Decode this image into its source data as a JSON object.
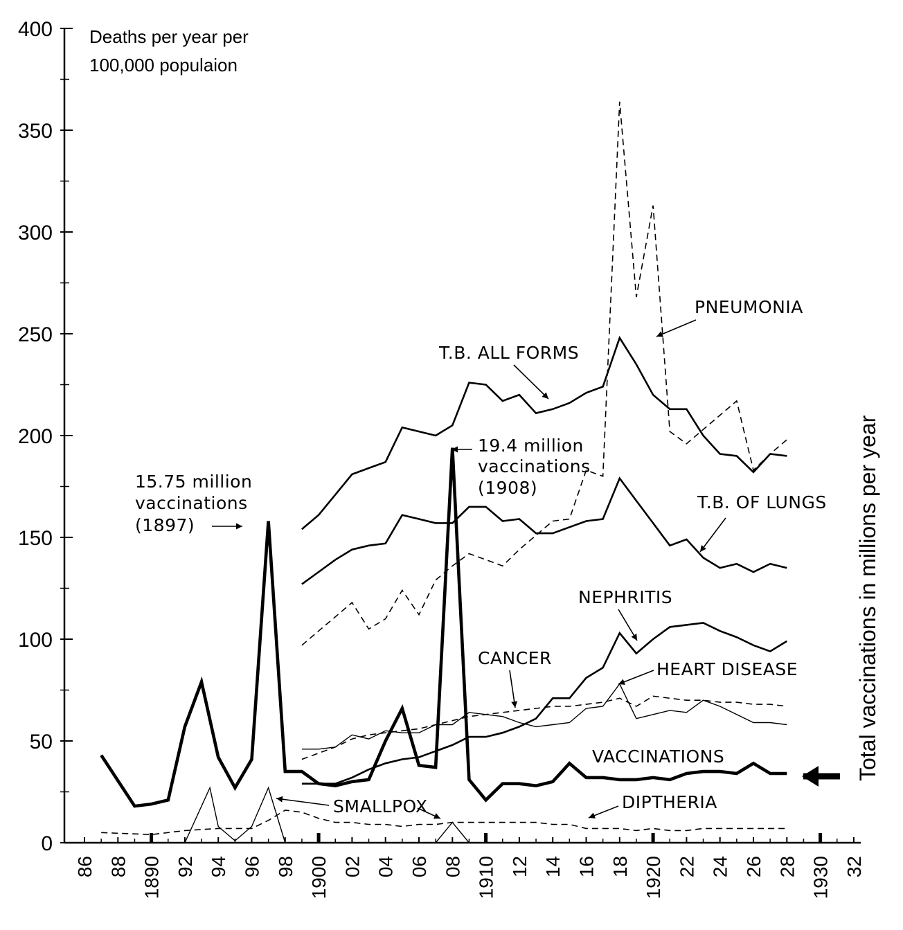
{
  "chart_data": {
    "type": "line",
    "ylabel_lines": [
      "Deaths per year per",
      "100,000 populaion"
    ],
    "right_label": "Total vaccinations in millions per year",
    "ylim": [
      0,
      400
    ],
    "xlim": [
      1885.5,
      1932.5
    ],
    "y_ticks": [
      0,
      50,
      100,
      150,
      200,
      250,
      300,
      350,
      400
    ],
    "x_ticks": [
      {
        "x": 1886,
        "label": "86"
      },
      {
        "x": 1888,
        "label": "88"
      },
      {
        "x": 1890,
        "label": "1890"
      },
      {
        "x": 1892,
        "label": "92"
      },
      {
        "x": 1894,
        "label": "94"
      },
      {
        "x": 1896,
        "label": "96"
      },
      {
        "x": 1898,
        "label": "98"
      },
      {
        "x": 1900,
        "label": "1900"
      },
      {
        "x": 1902,
        "label": "02"
      },
      {
        "x": 1904,
        "label": "04"
      },
      {
        "x": 1906,
        "label": "06"
      },
      {
        "x": 1908,
        "label": "08"
      },
      {
        "x": 1910,
        "label": "1910"
      },
      {
        "x": 1912,
        "label": "12"
      },
      {
        "x": 1914,
        "label": "14"
      },
      {
        "x": 1916,
        "label": "16"
      },
      {
        "x": 1918,
        "label": "18"
      },
      {
        "x": 1920,
        "label": "1920"
      },
      {
        "x": 1922,
        "label": "22"
      },
      {
        "x": 1924,
        "label": "24"
      },
      {
        "x": 1926,
        "label": "26"
      },
      {
        "x": 1928,
        "label": "28"
      },
      {
        "x": 1930,
        "label": "1930"
      },
      {
        "x": 1932,
        "label": "32"
      }
    ],
    "series": [
      {
        "name": "VACCINATIONS",
        "style": "bold",
        "points": [
          [
            1887,
            43
          ],
          [
            1889,
            18
          ],
          [
            1890,
            19
          ],
          [
            1891,
            21
          ],
          [
            1892,
            57
          ],
          [
            1893,
            79
          ],
          [
            1894,
            42
          ],
          [
            1895,
            27
          ],
          [
            1896,
            41
          ],
          [
            1897,
            158
          ],
          [
            1898,
            35
          ],
          [
            1899,
            35
          ],
          [
            1900,
            29
          ],
          [
            1901,
            28
          ],
          [
            1902,
            30
          ],
          [
            1903,
            31
          ],
          [
            1904,
            50
          ],
          [
            1905,
            66
          ],
          [
            1906,
            38
          ],
          [
            1907,
            37
          ],
          [
            1908,
            194
          ],
          [
            1909,
            31
          ],
          [
            1910,
            21
          ],
          [
            1911,
            29
          ],
          [
            1912,
            29
          ],
          [
            1913,
            28
          ],
          [
            1914,
            30
          ],
          [
            1915,
            39
          ],
          [
            1916,
            32
          ],
          [
            1917,
            32
          ],
          [
            1918,
            31
          ],
          [
            1919,
            31
          ],
          [
            1920,
            32
          ],
          [
            1921,
            31
          ],
          [
            1922,
            34
          ],
          [
            1923,
            35
          ],
          [
            1924,
            35
          ],
          [
            1925,
            34
          ],
          [
            1926,
            39
          ],
          [
            1927,
            34
          ],
          [
            1928,
            34
          ]
        ]
      },
      {
        "name": "T.B. ALL FORMS",
        "style": "solid",
        "points": [
          [
            1899,
            154
          ],
          [
            1900,
            161
          ],
          [
            1901,
            171
          ],
          [
            1902,
            181
          ],
          [
            1903,
            184
          ],
          [
            1904,
            187
          ],
          [
            1905,
            204
          ],
          [
            1906,
            202
          ],
          [
            1907,
            200
          ],
          [
            1908,
            205
          ],
          [
            1909,
            226
          ],
          [
            1910,
            225
          ],
          [
            1911,
            217
          ],
          [
            1912,
            220
          ],
          [
            1913,
            211
          ],
          [
            1914,
            213
          ],
          [
            1915,
            216
          ],
          [
            1916,
            221
          ],
          [
            1917,
            224
          ],
          [
            1918,
            248
          ],
          [
            1919,
            235
          ],
          [
            1920,
            220
          ],
          [
            1921,
            213
          ],
          [
            1922,
            213
          ],
          [
            1923,
            200
          ],
          [
            1924,
            191
          ],
          [
            1925,
            190
          ],
          [
            1926,
            182
          ],
          [
            1927,
            191
          ],
          [
            1928,
            190
          ]
        ]
      },
      {
        "name": "T.B. OF LUNGS",
        "style": "solid",
        "points": [
          [
            1899,
            127
          ],
          [
            1900,
            133
          ],
          [
            1901,
            139
          ],
          [
            1902,
            144
          ],
          [
            1903,
            146
          ],
          [
            1904,
            147
          ],
          [
            1905,
            161
          ],
          [
            1906,
            159
          ],
          [
            1907,
            157
          ],
          [
            1908,
            157
          ],
          [
            1909,
            165
          ],
          [
            1910,
            165
          ],
          [
            1911,
            158
          ],
          [
            1912,
            159
          ],
          [
            1913,
            152
          ],
          [
            1914,
            152
          ],
          [
            1915,
            155
          ],
          [
            1916,
            158
          ],
          [
            1917,
            159
          ],
          [
            1918,
            179
          ],
          [
            1919,
            168
          ],
          [
            1920,
            157
          ],
          [
            1921,
            146
          ],
          [
            1922,
            149
          ],
          [
            1923,
            140
          ],
          [
            1924,
            135
          ],
          [
            1925,
            137
          ],
          [
            1926,
            133
          ],
          [
            1927,
            137
          ],
          [
            1928,
            135
          ]
        ]
      },
      {
        "name": "PNEUMONIA",
        "style": "dashed",
        "points": [
          [
            1899,
            97
          ],
          [
            1900,
            104
          ],
          [
            1901,
            111
          ],
          [
            1902,
            118
          ],
          [
            1903,
            105
          ],
          [
            1904,
            110
          ],
          [
            1905,
            124
          ],
          [
            1906,
            112
          ],
          [
            1907,
            129
          ],
          [
            1908,
            136
          ],
          [
            1909,
            142
          ],
          [
            1910,
            139
          ],
          [
            1911,
            136
          ],
          [
            1912,
            144
          ],
          [
            1913,
            151
          ],
          [
            1914,
            158
          ],
          [
            1915,
            159
          ],
          [
            1916,
            183
          ],
          [
            1917,
            180
          ],
          [
            1918,
            364
          ],
          [
            1919,
            268
          ],
          [
            1920,
            313
          ],
          [
            1921,
            202
          ],
          [
            1922,
            196
          ],
          [
            1923,
            203
          ],
          [
            1924,
            210
          ],
          [
            1925,
            217
          ],
          [
            1926,
            183
          ],
          [
            1927,
            191
          ],
          [
            1928,
            198
          ]
        ]
      },
      {
        "name": "NEPHRITIS",
        "style": "solid",
        "points": [
          [
            1899,
            29
          ],
          [
            1900,
            29
          ],
          [
            1901,
            29
          ],
          [
            1902,
            32
          ],
          [
            1903,
            36
          ],
          [
            1904,
            39
          ],
          [
            1905,
            41
          ],
          [
            1906,
            42
          ],
          [
            1907,
            45
          ],
          [
            1908,
            48
          ],
          [
            1909,
            52
          ],
          [
            1910,
            52
          ],
          [
            1911,
            54
          ],
          [
            1912,
            57
          ],
          [
            1913,
            61
          ],
          [
            1914,
            71
          ],
          [
            1915,
            71
          ],
          [
            1916,
            81
          ],
          [
            1917,
            86
          ],
          [
            1918,
            103
          ],
          [
            1919,
            93
          ],
          [
            1920,
            100
          ],
          [
            1921,
            106
          ],
          [
            1922,
            107
          ],
          [
            1923,
            108
          ],
          [
            1924,
            104
          ],
          [
            1925,
            101
          ],
          [
            1926,
            97
          ],
          [
            1927,
            94
          ],
          [
            1928,
            99
          ]
        ]
      },
      {
        "name": "CANCER",
        "style": "dashed",
        "points": [
          [
            1899,
            41
          ],
          [
            1900,
            44
          ],
          [
            1901,
            47
          ],
          [
            1902,
            51
          ],
          [
            1903,
            53
          ],
          [
            1904,
            54
          ],
          [
            1905,
            55
          ],
          [
            1906,
            56
          ],
          [
            1907,
            58
          ],
          [
            1908,
            60
          ],
          [
            1909,
            62
          ],
          [
            1910,
            63
          ],
          [
            1911,
            64
          ],
          [
            1912,
            65
          ],
          [
            1913,
            66
          ],
          [
            1914,
            67
          ],
          [
            1915,
            67
          ],
          [
            1916,
            68
          ],
          [
            1917,
            69
          ],
          [
            1918,
            71
          ],
          [
            1919,
            67
          ],
          [
            1920,
            72
          ],
          [
            1921,
            71
          ],
          [
            1922,
            70
          ],
          [
            1923,
            70
          ],
          [
            1924,
            69
          ],
          [
            1925,
            69
          ],
          [
            1926,
            68
          ],
          [
            1927,
            68
          ],
          [
            1928,
            67
          ]
        ]
      },
      {
        "name": "HEART DISEASE",
        "style": "thin",
        "points": [
          [
            1899,
            46
          ],
          [
            1900,
            46
          ],
          [
            1901,
            47
          ],
          [
            1902,
            53
          ],
          [
            1903,
            51
          ],
          [
            1904,
            55
          ],
          [
            1905,
            54
          ],
          [
            1906,
            54
          ],
          [
            1907,
            58
          ],
          [
            1908,
            58
          ],
          [
            1909,
            64
          ],
          [
            1910,
            63
          ],
          [
            1911,
            62
          ],
          [
            1912,
            59
          ],
          [
            1913,
            57
          ],
          [
            1914,
            58
          ],
          [
            1915,
            59
          ],
          [
            1916,
            66
          ],
          [
            1917,
            67
          ],
          [
            1918,
            78
          ],
          [
            1919,
            61
          ],
          [
            1920,
            63
          ],
          [
            1921,
            65
          ],
          [
            1922,
            64
          ],
          [
            1923,
            70
          ],
          [
            1924,
            67
          ],
          [
            1925,
            63
          ],
          [
            1926,
            59
          ],
          [
            1927,
            59
          ],
          [
            1928,
            58
          ]
        ]
      },
      {
        "name": "SMALLPOX",
        "style": "thin",
        "points": [
          [
            1892,
            0
          ],
          [
            1893.5,
            27
          ],
          [
            1894,
            8
          ],
          [
            1895,
            1
          ],
          [
            1896,
            8
          ],
          [
            1897,
            27
          ],
          [
            1898,
            0
          ],
          [
            1907,
            0
          ],
          [
            1908,
            10
          ],
          [
            1909,
            0
          ]
        ]
      },
      {
        "name": "DIPTHERIA",
        "style": "dashed",
        "points": [
          [
            1887,
            5
          ],
          [
            1890,
            4
          ],
          [
            1892,
            6
          ],
          [
            1894,
            7
          ],
          [
            1896,
            7
          ],
          [
            1897,
            11
          ],
          [
            1898,
            16
          ],
          [
            1899,
            15
          ],
          [
            1900,
            12
          ],
          [
            1901,
            10
          ],
          [
            1902,
            10
          ],
          [
            1903,
            9
          ],
          [
            1904,
            9
          ],
          [
            1905,
            8
          ],
          [
            1906,
            9
          ],
          [
            1907,
            9
          ],
          [
            1908,
            10
          ],
          [
            1909,
            10
          ],
          [
            1910,
            10
          ],
          [
            1911,
            10
          ],
          [
            1912,
            10
          ],
          [
            1913,
            10
          ],
          [
            1914,
            9
          ],
          [
            1915,
            9
          ],
          [
            1916,
            7
          ],
          [
            1917,
            7
          ],
          [
            1918,
            7
          ],
          [
            1919,
            6
          ],
          [
            1920,
            7
          ],
          [
            1921,
            6
          ],
          [
            1922,
            6
          ],
          [
            1923,
            7
          ],
          [
            1924,
            7
          ],
          [
            1925,
            7
          ],
          [
            1926,
            7
          ],
          [
            1927,
            7
          ],
          [
            1928,
            7
          ]
        ]
      }
    ]
  },
  "annotations": {
    "vacc_1897_lines": [
      "15.75 million",
      "vaccinations",
      "(1897)"
    ],
    "vacc_1908_lines": [
      "19.4 million",
      "vaccinations",
      "(1908)"
    ],
    "pneumonia": "PNEUMONIA",
    "tb_all": "T.B. ALL FORMS",
    "tb_lungs": "T.B. OF LUNGS",
    "nephritis": "NEPHRITIS",
    "cancer": "CANCER",
    "heart": "HEART DISEASE",
    "vaccinations": "VACCINATIONS",
    "smallpox": "SMALLPOX",
    "diptheria": "DIPTHERIA"
  }
}
